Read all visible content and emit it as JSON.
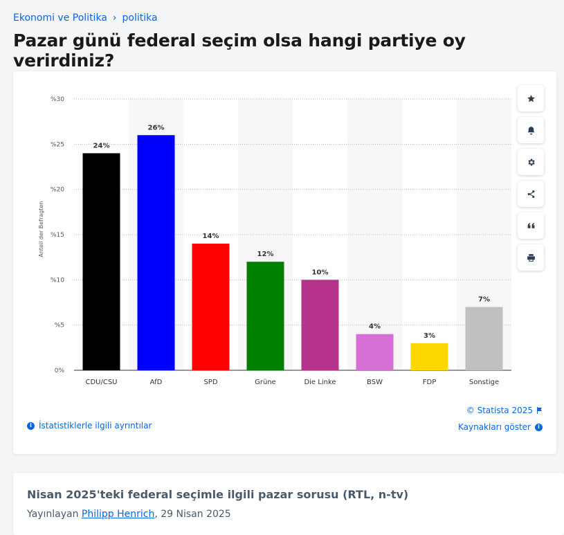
{
  "breadcrumb": {
    "items": [
      "Ekonomi ve Politika",
      "politika"
    ],
    "separator": "›"
  },
  "page_title": "Pazar günü federal seçim olsa hangi partiye oy verirdiniz?",
  "toolbar": {
    "icons": [
      "star-icon",
      "bell-icon",
      "gear-icon",
      "share-icon",
      "quote-icon",
      "print-icon"
    ]
  },
  "footer": {
    "copyright": "© Statista 2025",
    "sources_link": "Kaynakları göster",
    "details_link": "İstatistiklerle ilgili ayrıntılar"
  },
  "chart_data": {
    "type": "bar",
    "categories": [
      "CDU/CSU",
      "AfD",
      "SPD",
      "Grüne",
      "Die Linke",
      "BSW",
      "FDP",
      "Sonstige"
    ],
    "values": [
      24,
      26,
      14,
      12,
      10,
      4,
      3,
      7
    ],
    "data_labels": [
      "24%",
      "26%",
      "14%",
      "12%",
      "10%",
      "4%",
      "3%",
      "7%"
    ],
    "colors": [
      "#000000",
      "#0000ff",
      "#ff0000",
      "#008000",
      "#b5338a",
      "#d670d6",
      "#ffd700",
      "#c0c0c0"
    ],
    "ylabel": "Anteil der Befragten",
    "ylim": [
      0,
      30
    ],
    "yticks": [
      0,
      5,
      10,
      15,
      20,
      25,
      30
    ],
    "ytick_labels": [
      "0%",
      "%5",
      "%10",
      "%15",
      "%20",
      "%25",
      "%30"
    ],
    "grid": true,
    "legend": "none"
  },
  "related": {
    "title": "Nisan 2025'teki federal seçimle ilgili pazar sorusu (RTL, n-tv)",
    "published_by": "Yayınlayan",
    "author": "Philipp Henrich",
    "date": ", 29 Nisan 2025"
  }
}
